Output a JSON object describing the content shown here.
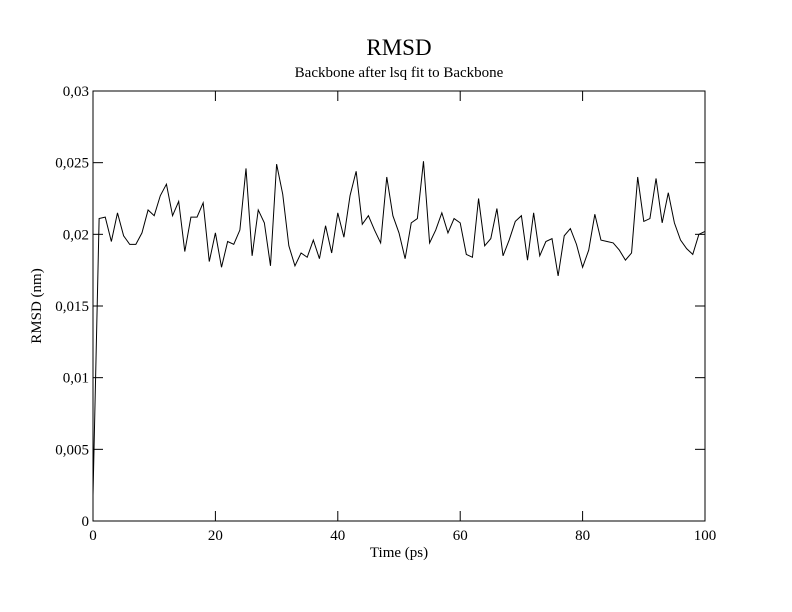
{
  "chart_data": {
    "type": "line",
    "title": "RMSD",
    "subtitle": "Backbone after lsq fit to Backbone",
    "x_label": "Time (ps)",
    "y_label": "RMSD (nm)",
    "x": [
      0,
      1,
      2,
      3,
      4,
      5,
      6,
      7,
      8,
      9,
      10,
      11,
      12,
      13,
      14,
      15,
      16,
      17,
      18,
      19,
      20,
      21,
      22,
      23,
      24,
      25,
      26,
      27,
      28,
      29,
      30,
      31,
      32,
      33,
      34,
      35,
      36,
      37,
      38,
      39,
      40,
      41,
      42,
      43,
      44,
      45,
      46,
      47,
      48,
      49,
      50,
      51,
      52,
      53,
      54,
      55,
      56,
      57,
      58,
      59,
      60,
      61,
      62,
      63,
      64,
      65,
      66,
      67,
      68,
      69,
      70,
      71,
      72,
      73,
      74,
      75,
      76,
      77,
      78,
      79,
      80,
      81,
      82,
      83,
      84,
      85,
      86,
      87,
      88,
      89,
      90,
      91,
      92,
      93,
      94,
      95,
      96,
      97,
      98,
      99,
      100
    ],
    "series": [
      {
        "color": "#000000",
        "values": [
          0.0018,
          0.0211,
          0.0212,
          0.0195,
          0.0215,
          0.0199,
          0.0193,
          0.0193,
          0.0201,
          0.0217,
          0.0213,
          0.0227,
          0.0235,
          0.0213,
          0.0223,
          0.0188,
          0.0212,
          0.0212,
          0.0222,
          0.0181,
          0.0201,
          0.0177,
          0.0195,
          0.0193,
          0.0203,
          0.0246,
          0.0185,
          0.0217,
          0.0208,
          0.0178,
          0.0249,
          0.0228,
          0.0192,
          0.0178,
          0.0187,
          0.0184,
          0.0196,
          0.0183,
          0.0206,
          0.0187,
          0.0215,
          0.0198,
          0.0227,
          0.0244,
          0.0207,
          0.0213,
          0.0203,
          0.0194,
          0.024,
          0.0213,
          0.0201,
          0.0183,
          0.0208,
          0.0211,
          0.0251,
          0.0194,
          0.0203,
          0.0215,
          0.0201,
          0.0211,
          0.0208,
          0.0186,
          0.0184,
          0.0225,
          0.0192,
          0.0197,
          0.0218,
          0.0185,
          0.0196,
          0.0209,
          0.0213,
          0.0182,
          0.0215,
          0.0185,
          0.0195,
          0.0197,
          0.0171,
          0.0199,
          0.0204,
          0.0193,
          0.0177,
          0.0189,
          0.0214,
          0.0196,
          0.0195,
          0.0194,
          0.0189,
          0.0182,
          0.0187,
          0.024,
          0.0209,
          0.0211,
          0.0239,
          0.0208,
          0.0229,
          0.0208,
          0.0196,
          0.019,
          0.0186,
          0.02,
          0.0202
        ]
      }
    ],
    "xlim": [
      0,
      100
    ],
    "ylim": [
      0,
      0.03
    ],
    "xticks": [
      0,
      20,
      40,
      60,
      80,
      100
    ],
    "yticks": [
      0,
      {
        "value": 0.005,
        "label": "0,005"
      },
      {
        "value": 0.01,
        "label": "0,01"
      },
      {
        "value": 0.015,
        "label": "0,015"
      },
      {
        "value": 0.02,
        "label": "0,02"
      },
      {
        "value": 0.025,
        "label": "0,025"
      },
      {
        "value": 0.03,
        "label": "0,03"
      }
    ]
  }
}
